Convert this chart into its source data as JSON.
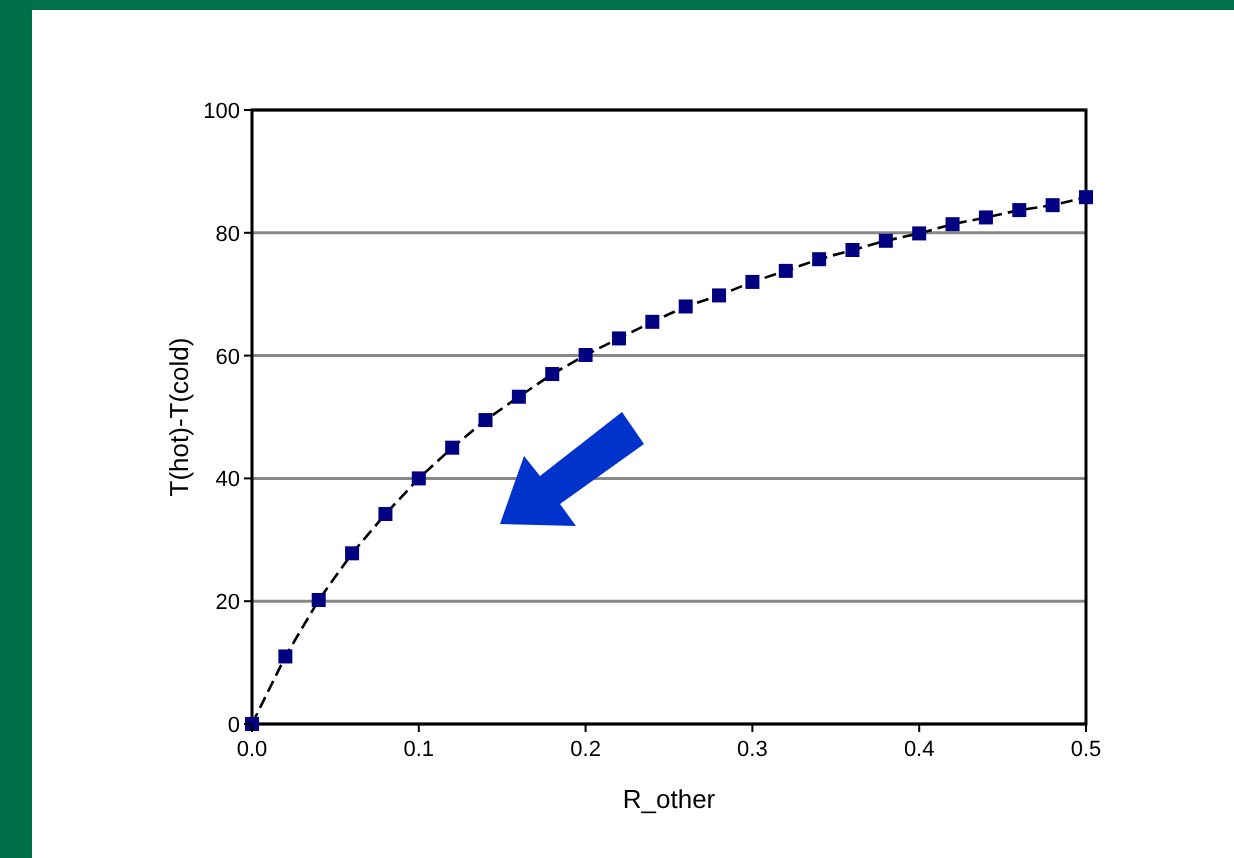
{
  "chart_data": {
    "type": "line",
    "xlabel": "R_other",
    "ylabel": "T(hot)-T(cold)",
    "x": [
      0,
      0.02,
      0.04,
      0.06,
      0.08,
      0.1,
      0.12,
      0.14,
      0.16,
      0.18,
      0.2,
      0.22,
      0.24,
      0.26,
      0.28,
      0.3,
      0.32,
      0.34,
      0.36,
      0.38,
      0.4,
      0.42,
      0.44,
      0.46,
      0.48,
      0.5
    ],
    "series": [
      {
        "color": "#000080",
        "values": [
          0,
          11,
          20.2,
          27.8,
          34.2,
          40,
          45,
          49.5,
          53.3,
          57,
          60.1,
          62.8,
          65.5,
          68,
          69.8,
          72,
          73.8,
          75.7,
          77.2,
          78.7,
          79.9,
          81.4,
          82.5,
          83.7,
          84.5,
          85.8
        ]
      }
    ],
    "xlim": [
      0,
      0.5
    ],
    "xticks": [
      {
        "value": 0,
        "label": "0.0"
      },
      0.1,
      0.2,
      0.3,
      0.4,
      0.5
    ],
    "ylim": [
      0,
      100
    ],
    "yticks": [
      0,
      20,
      40,
      60,
      80,
      100
    ],
    "grid": "y",
    "marker": "square",
    "line_style": "dashed"
  }
}
